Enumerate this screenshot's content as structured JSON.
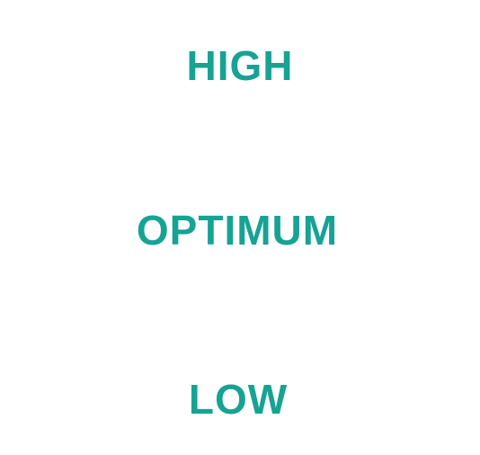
{
  "levels": {
    "high": "HIGH",
    "optimum": "OPTIMUM",
    "low": "LOW"
  },
  "colors": {
    "label": "#17a394",
    "background": "#ffffff"
  }
}
